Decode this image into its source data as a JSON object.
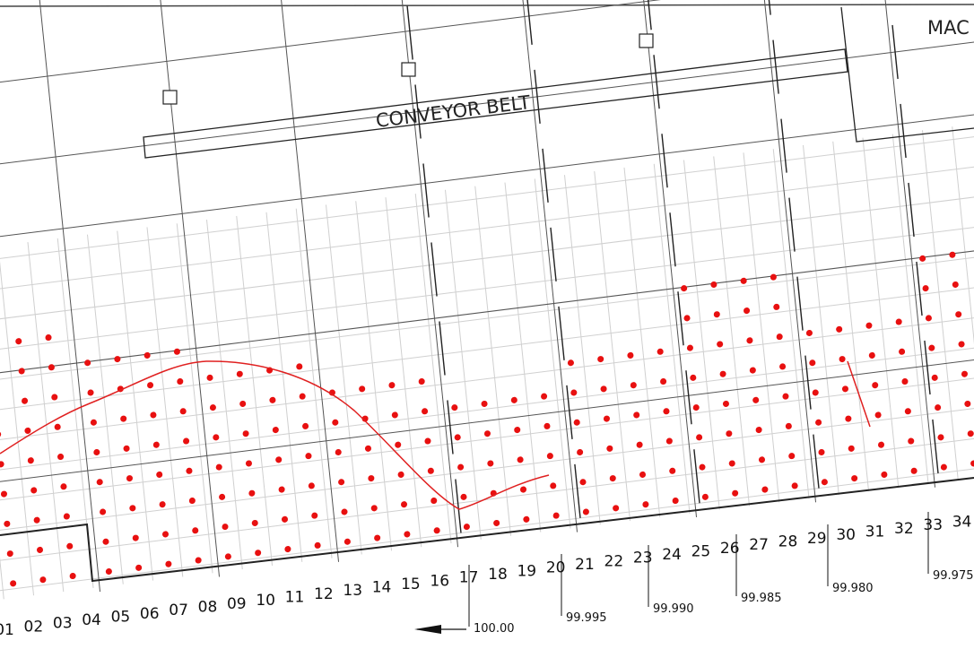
{
  "labels": {
    "conveyor": "CONVEYOR BELT",
    "machine": "MAC"
  },
  "columns": [
    "01",
    "02",
    "03",
    "04",
    "05",
    "06",
    "07",
    "08",
    "09",
    "10",
    "11",
    "12",
    "13",
    "14",
    "15",
    "16",
    "17",
    "18",
    "19",
    "20",
    "21",
    "22",
    "23",
    "24",
    "25",
    "26",
    "27",
    "28",
    "29",
    "30",
    "31",
    "32",
    "33",
    "34"
  ],
  "elevations": [
    "100.00",
    "99.995",
    "99.990",
    "99.985",
    "99.980",
    "99.975"
  ]
}
